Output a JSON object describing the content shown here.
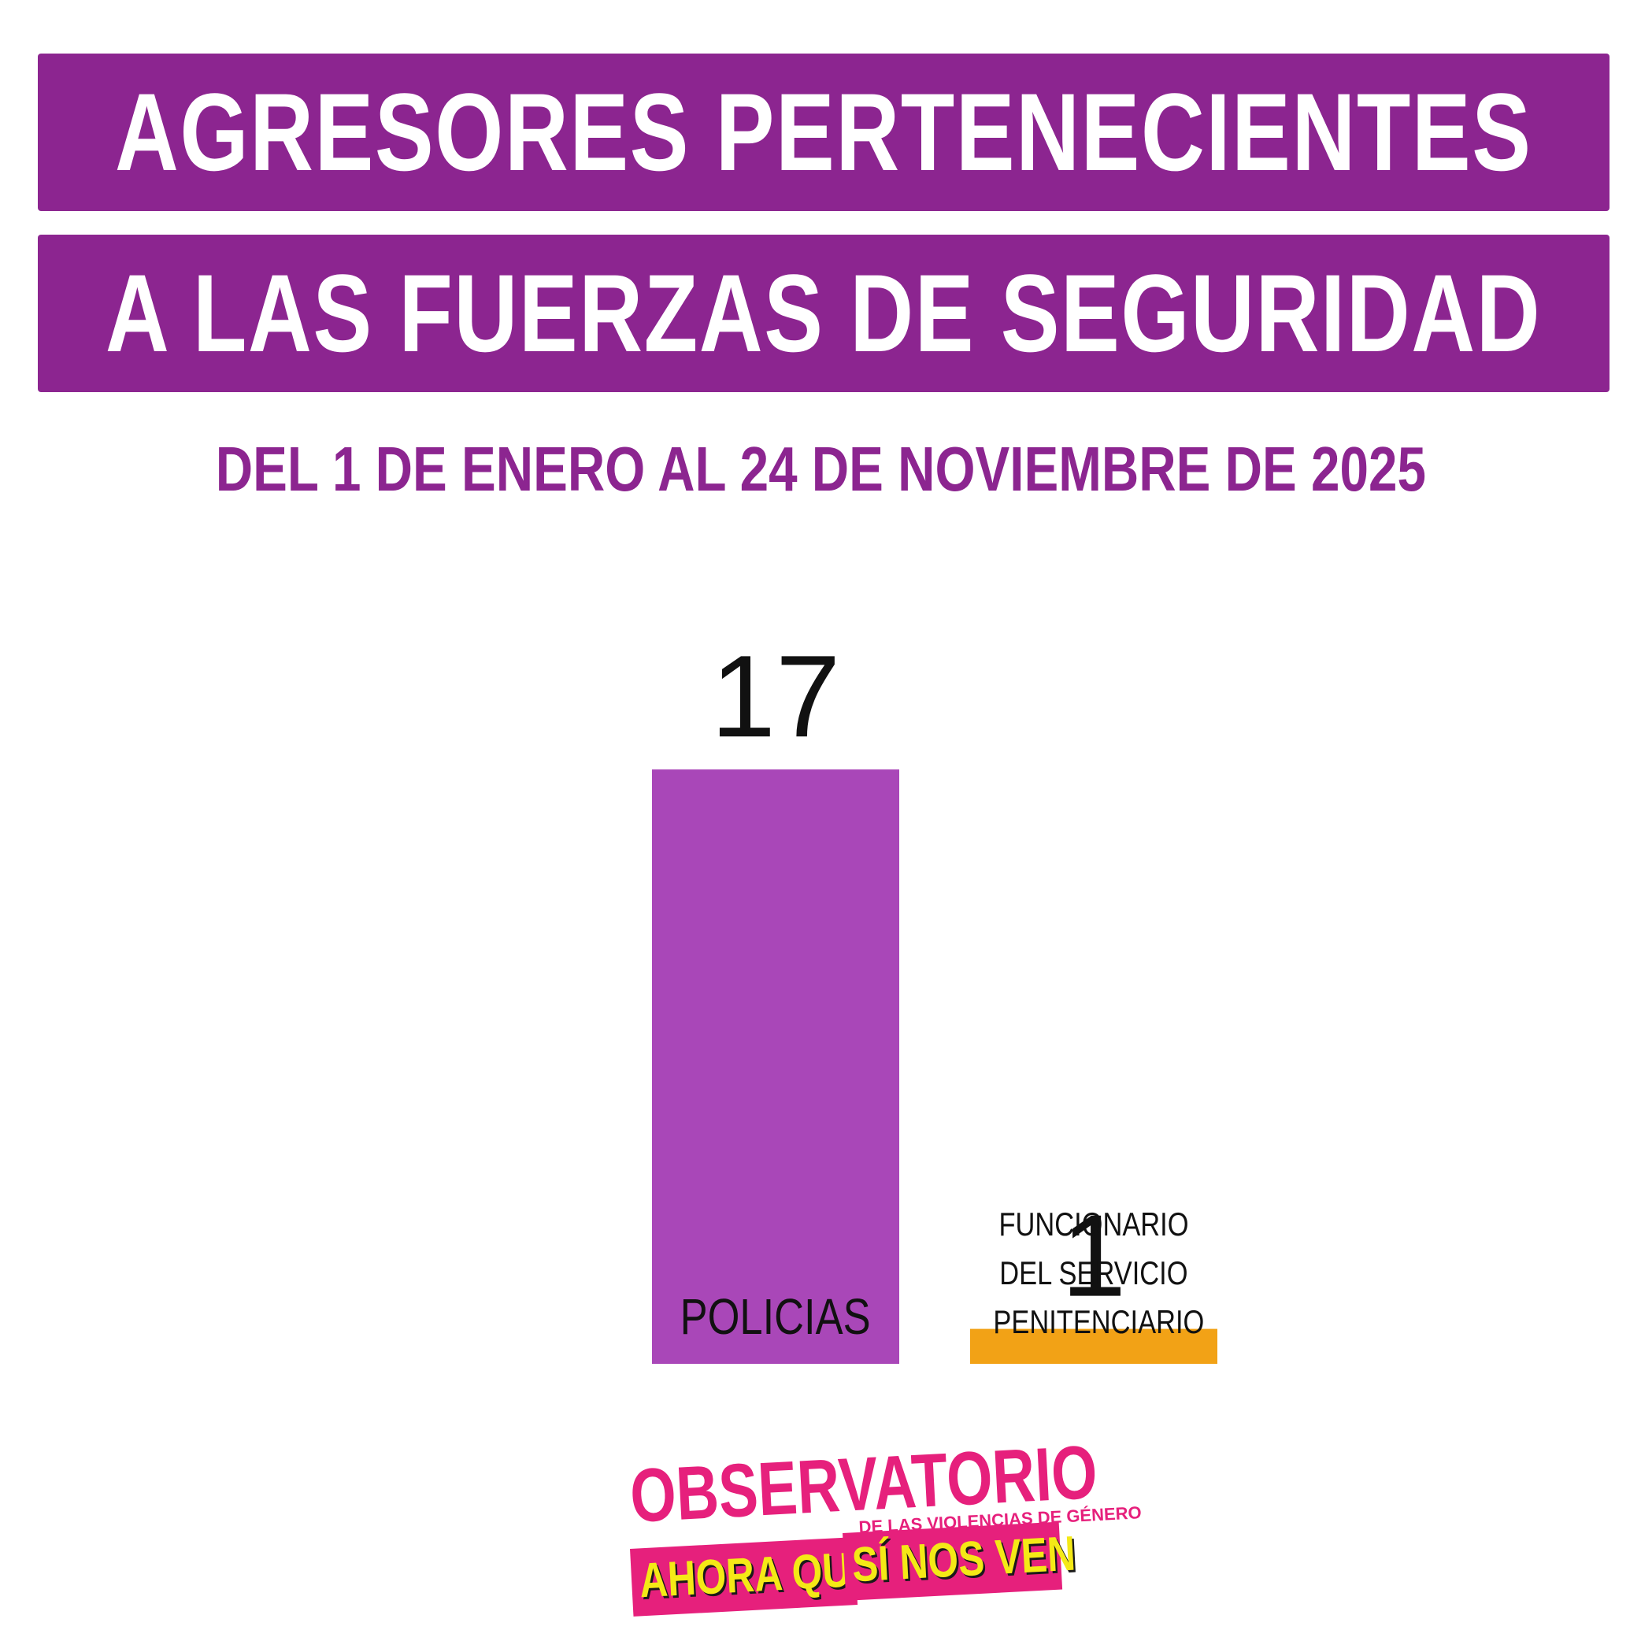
{
  "title": {
    "line1": "AGRESORES PERTENECIENTES",
    "line2": "A LAS FUERZAS DE SEGURIDAD"
  },
  "subtitle": "DEL 1 DE ENERO AL 24 DE NOVIEMBRE DE 2025",
  "colors": {
    "banner": "#8c2590",
    "subtitle": "#8c2590",
    "bar_policias": "#a947b8",
    "bar_funcionario": "#f2a216",
    "logo_pink": "#e6207c",
    "logo_yellow": "#f4e916"
  },
  "chart_data": {
    "type": "bar",
    "title": "AGRESORES PERTENECIENTES A LAS FUERZAS DE SEGURIDAD",
    "categories": [
      "POLICIAS",
      "FUNCIONARIO DEL SERVICIO PENITENCIARIO"
    ],
    "category_label_lines": [
      [
        "POLICIAS"
      ],
      [
        "FUNCIONARIO",
        "DEL SERVICIO",
        "PENITENCIARIO"
      ]
    ],
    "values": [
      17,
      1
    ],
    "value_labels": [
      "17",
      "1"
    ],
    "bar_colors": [
      "#a947b8",
      "#f2a216"
    ],
    "grid": false,
    "legend": "none",
    "xlabel": "",
    "ylabel": ""
  },
  "logo": {
    "word": "OBSERVATORIO",
    "subline": "DE LAS VIOLENCIAS DE GÉNERO",
    "band_left": "AHORA QUE",
    "band_right": "SÍ NOS VEN"
  }
}
